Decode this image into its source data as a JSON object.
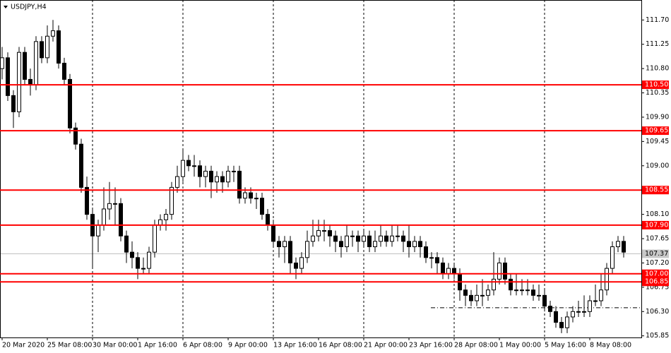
{
  "chart_data": {
    "type": "candlestick",
    "title": "USDJPY,H4",
    "categories": [
      "20 Mar 2020",
      null,
      null,
      null,
      null,
      null,
      null,
      null,
      "25 Mar 08:00",
      null,
      null,
      null,
      null,
      null,
      null,
      null,
      "30 Mar 00:00",
      null,
      null,
      null,
      null,
      null,
      null,
      null,
      "1 Apr 16:00",
      null,
      null,
      null,
      null,
      null,
      null,
      null,
      "6 Apr 08:00",
      null,
      null,
      null,
      null,
      null,
      null,
      null,
      "9 Apr 00:00",
      null,
      null,
      null,
      null,
      null,
      null,
      null,
      "13 Apr 16:00",
      null,
      null,
      null,
      null,
      null,
      null,
      null,
      "16 Apr 08:00",
      null,
      null,
      null,
      null,
      null,
      null,
      null,
      "21 Apr 00:00",
      null,
      null,
      null,
      null,
      null,
      null,
      null,
      "23 Apr 16:00",
      null,
      null,
      null,
      null,
      null,
      null,
      null,
      "28 Apr 08:00",
      null,
      null,
      null,
      null,
      null,
      null,
      null,
      "1 May 00:00",
      null,
      null,
      null,
      null,
      null,
      null,
      null,
      "5 May 16:00",
      null,
      null,
      null,
      null,
      null,
      null,
      null,
      "8 May 08:00",
      null,
      null,
      null,
      null,
      null,
      null
    ],
    "ohlc": [
      [
        110.8,
        111.2,
        110.6,
        111.0
      ],
      [
        111.0,
        111.1,
        110.2,
        110.3
      ],
      [
        110.3,
        110.4,
        109.7,
        110.0
      ],
      [
        110.0,
        111.2,
        109.9,
        111.1
      ],
      [
        111.1,
        111.2,
        110.5,
        110.6
      ],
      [
        110.6,
        110.8,
        110.3,
        110.5
      ],
      [
        110.5,
        111.4,
        110.4,
        111.3
      ],
      [
        111.3,
        111.4,
        110.9,
        111.0
      ],
      [
        111.0,
        111.6,
        110.9,
        111.4
      ],
      [
        111.4,
        111.7,
        111.3,
        111.5
      ],
      [
        111.5,
        111.6,
        110.8,
        110.9
      ],
      [
        110.9,
        111.0,
        110.5,
        110.6
      ],
      [
        110.6,
        110.7,
        109.6,
        109.7
      ],
      [
        109.7,
        109.8,
        109.3,
        109.4
      ],
      [
        109.4,
        109.5,
        108.5,
        108.6
      ],
      [
        108.6,
        108.8,
        108.0,
        108.1
      ],
      [
        108.1,
        108.2,
        107.1,
        107.7
      ],
      [
        107.7,
        108.0,
        107.4,
        107.9
      ],
      [
        107.9,
        108.6,
        107.8,
        108.2
      ],
      [
        108.2,
        108.7,
        108.0,
        108.3
      ],
      [
        108.3,
        108.6,
        107.9,
        108.3
      ],
      [
        108.3,
        108.4,
        107.6,
        107.7
      ],
      [
        107.7,
        107.8,
        107.2,
        107.4
      ],
      [
        107.4,
        107.6,
        107.1,
        107.3
      ],
      [
        107.3,
        107.4,
        106.9,
        107.1
      ],
      [
        107.1,
        107.3,
        107.0,
        107.1
      ],
      [
        107.1,
        107.5,
        107.0,
        107.4
      ],
      [
        107.4,
        108.0,
        107.3,
        107.9
      ],
      [
        107.9,
        108.1,
        107.8,
        108.0
      ],
      [
        108.0,
        108.2,
        107.8,
        108.1
      ],
      [
        108.1,
        108.7,
        108.0,
        108.6
      ],
      [
        108.6,
        109.0,
        108.5,
        108.8
      ],
      [
        108.8,
        109.3,
        108.7,
        109.1
      ],
      [
        109.1,
        109.2,
        108.9,
        109.0
      ],
      [
        109.0,
        109.2,
        108.8,
        109.0
      ],
      [
        109.0,
        109.1,
        108.6,
        108.8
      ],
      [
        108.8,
        109.0,
        108.6,
        108.9
      ],
      [
        108.9,
        109.0,
        108.4,
        108.7
      ],
      [
        108.7,
        108.9,
        108.5,
        108.8
      ],
      [
        108.8,
        108.9,
        108.5,
        108.7
      ],
      [
        108.7,
        109.0,
        108.6,
        108.9
      ],
      [
        108.9,
        109.0,
        108.7,
        108.9
      ],
      [
        108.9,
        109.0,
        108.3,
        108.4
      ],
      [
        108.4,
        108.6,
        108.3,
        108.5
      ],
      [
        108.5,
        108.6,
        108.3,
        108.4
      ],
      [
        108.4,
        108.5,
        108.2,
        108.4
      ],
      [
        108.4,
        108.5,
        108.0,
        108.1
      ],
      [
        108.1,
        108.2,
        107.8,
        107.9
      ],
      [
        107.9,
        108.0,
        107.5,
        107.6
      ],
      [
        107.6,
        107.7,
        107.3,
        107.5
      ],
      [
        107.5,
        107.7,
        107.2,
        107.6
      ],
      [
        107.6,
        107.7,
        107.0,
        107.2
      ],
      [
        107.2,
        107.3,
        106.9,
        107.1
      ],
      [
        107.1,
        107.4,
        107.0,
        107.3
      ],
      [
        107.3,
        107.8,
        107.2,
        107.6
      ],
      [
        107.6,
        108.0,
        107.5,
        107.7
      ],
      [
        107.7,
        108.0,
        107.6,
        107.8
      ],
      [
        107.8,
        108.0,
        107.6,
        107.8
      ],
      [
        107.8,
        107.9,
        107.5,
        107.7
      ],
      [
        107.7,
        107.8,
        107.4,
        107.6
      ],
      [
        107.6,
        107.7,
        107.3,
        107.5
      ],
      [
        107.5,
        107.9,
        107.4,
        107.7
      ],
      [
        107.7,
        107.8,
        107.5,
        107.7
      ],
      [
        107.7,
        107.8,
        107.4,
        107.6
      ],
      [
        107.6,
        107.8,
        107.5,
        107.7
      ],
      [
        107.7,
        107.8,
        107.4,
        107.5
      ],
      [
        107.5,
        107.8,
        107.4,
        107.6
      ],
      [
        107.6,
        107.9,
        107.5,
        107.7
      ],
      [
        107.7,
        107.8,
        107.5,
        107.6
      ],
      [
        107.6,
        107.9,
        107.5,
        107.7
      ],
      [
        107.7,
        107.9,
        107.6,
        107.7
      ],
      [
        107.7,
        107.8,
        107.4,
        107.6
      ],
      [
        107.6,
        107.9,
        107.3,
        107.5
      ],
      [
        107.5,
        107.7,
        107.4,
        107.6
      ],
      [
        107.6,
        107.7,
        107.3,
        107.5
      ],
      [
        107.5,
        107.6,
        107.2,
        107.3
      ],
      [
        107.3,
        107.4,
        107.1,
        107.3
      ],
      [
        107.3,
        107.4,
        107.0,
        107.2
      ],
      [
        107.2,
        107.3,
        106.9,
        107.0
      ],
      [
        107.0,
        107.2,
        106.9,
        107.1
      ],
      [
        107.1,
        107.2,
        106.9,
        107.0
      ],
      [
        107.0,
        107.1,
        106.5,
        106.7
      ],
      [
        106.7,
        106.8,
        106.4,
        106.6
      ],
      [
        106.6,
        106.7,
        106.4,
        106.5
      ],
      [
        106.5,
        106.8,
        106.4,
        106.6
      ],
      [
        106.6,
        106.9,
        106.4,
        106.6
      ],
      [
        106.6,
        106.8,
        106.5,
        106.7
      ],
      [
        106.7,
        107.4,
        106.6,
        106.9
      ],
      [
        106.9,
        107.3,
        106.8,
        107.2
      ],
      [
        107.2,
        107.3,
        106.8,
        106.9
      ],
      [
        106.9,
        107.0,
        106.6,
        106.7
      ],
      [
        106.7,
        107.0,
        106.6,
        106.7
      ],
      [
        106.7,
        106.9,
        106.6,
        106.7
      ],
      [
        106.7,
        106.9,
        106.6,
        106.7
      ],
      [
        106.7,
        106.8,
        106.5,
        106.6
      ],
      [
        106.6,
        106.8,
        106.5,
        106.6
      ],
      [
        106.6,
        106.7,
        106.3,
        106.4
      ],
      [
        106.4,
        106.5,
        106.2,
        106.3
      ],
      [
        106.3,
        106.4,
        106.0,
        106.1
      ],
      [
        106.1,
        106.2,
        105.9,
        106.0
      ],
      [
        106.0,
        106.3,
        105.9,
        106.2
      ],
      [
        106.2,
        106.4,
        106.1,
        106.3
      ],
      [
        106.3,
        106.5,
        106.2,
        106.3
      ],
      [
        106.3,
        106.6,
        106.2,
        106.3
      ],
      [
        106.3,
        106.6,
        106.2,
        106.5
      ],
      [
        106.5,
        106.8,
        106.4,
        106.5
      ],
      [
        106.5,
        107.0,
        106.4,
        106.7
      ],
      [
        106.7,
        107.2,
        106.6,
        107.1
      ],
      [
        107.1,
        107.6,
        107.0,
        107.5
      ],
      [
        107.5,
        107.7,
        107.4,
        107.6
      ],
      [
        107.6,
        107.7,
        107.3,
        107.4
      ]
    ],
    "ylim": [
      105.82,
      112.07
    ],
    "yticks": [
      {
        "value": 111.7,
        "label": "111.70"
      },
      {
        "value": 111.25,
        "label": "111.25"
      },
      {
        "value": 110.8,
        "label": "110.80"
      },
      {
        "value": 110.35,
        "label": "110.35"
      },
      {
        "value": 109.9,
        "label": "109.90"
      },
      {
        "value": 109.45,
        "label": "109.45"
      },
      {
        "value": 109.0,
        "label": "109.00"
      },
      {
        "value": 108.1,
        "label": "108.10"
      },
      {
        "value": 107.65,
        "label": "107.65"
      },
      {
        "value": 107.2,
        "label": "107.20"
      },
      {
        "value": 106.75,
        "label": "106.75"
      },
      {
        "value": 106.3,
        "label": "106.30"
      },
      {
        "value": 105.85,
        "label": "105.85"
      }
    ],
    "levels": [
      {
        "value": 110.5,
        "label": "110.50"
      },
      {
        "value": 109.65,
        "label": "109.65"
      },
      {
        "value": 108.55,
        "label": "108.55"
      },
      {
        "value": 107.9,
        "label": "107.90"
      },
      {
        "value": 107.0,
        "label": "107.00"
      },
      {
        "value": 106.85,
        "label": "106.85"
      }
    ],
    "level_color": "#ff0000",
    "current_price": {
      "value": 107.37,
      "label": "107.37"
    },
    "dash_level": 106.37,
    "grid": true
  }
}
